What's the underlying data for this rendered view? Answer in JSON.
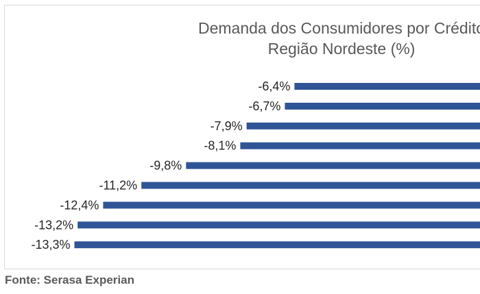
{
  "chart_data": {
    "type": "bar",
    "orientation": "horizontal",
    "title_lines": [
      "Demanda dos Consumidores por Crédito",
      "Região Nordeste (%)"
    ],
    "values": [
      -6.4,
      -6.7,
      -7.9,
      -8.1,
      -9.8,
      -11.2,
      -12.4,
      -13.2,
      -13.3
    ],
    "labels": [
      "-6,4%",
      "-6,7%",
      "-7,9%",
      "-8,1%",
      "-9,8%",
      "-11,2%",
      "-12,4%",
      "-13,2%",
      "-13,3%"
    ],
    "bar_color": "#2f5597",
    "grid": false,
    "legend": "none"
  },
  "source": "Fonte: Serasa Experian"
}
